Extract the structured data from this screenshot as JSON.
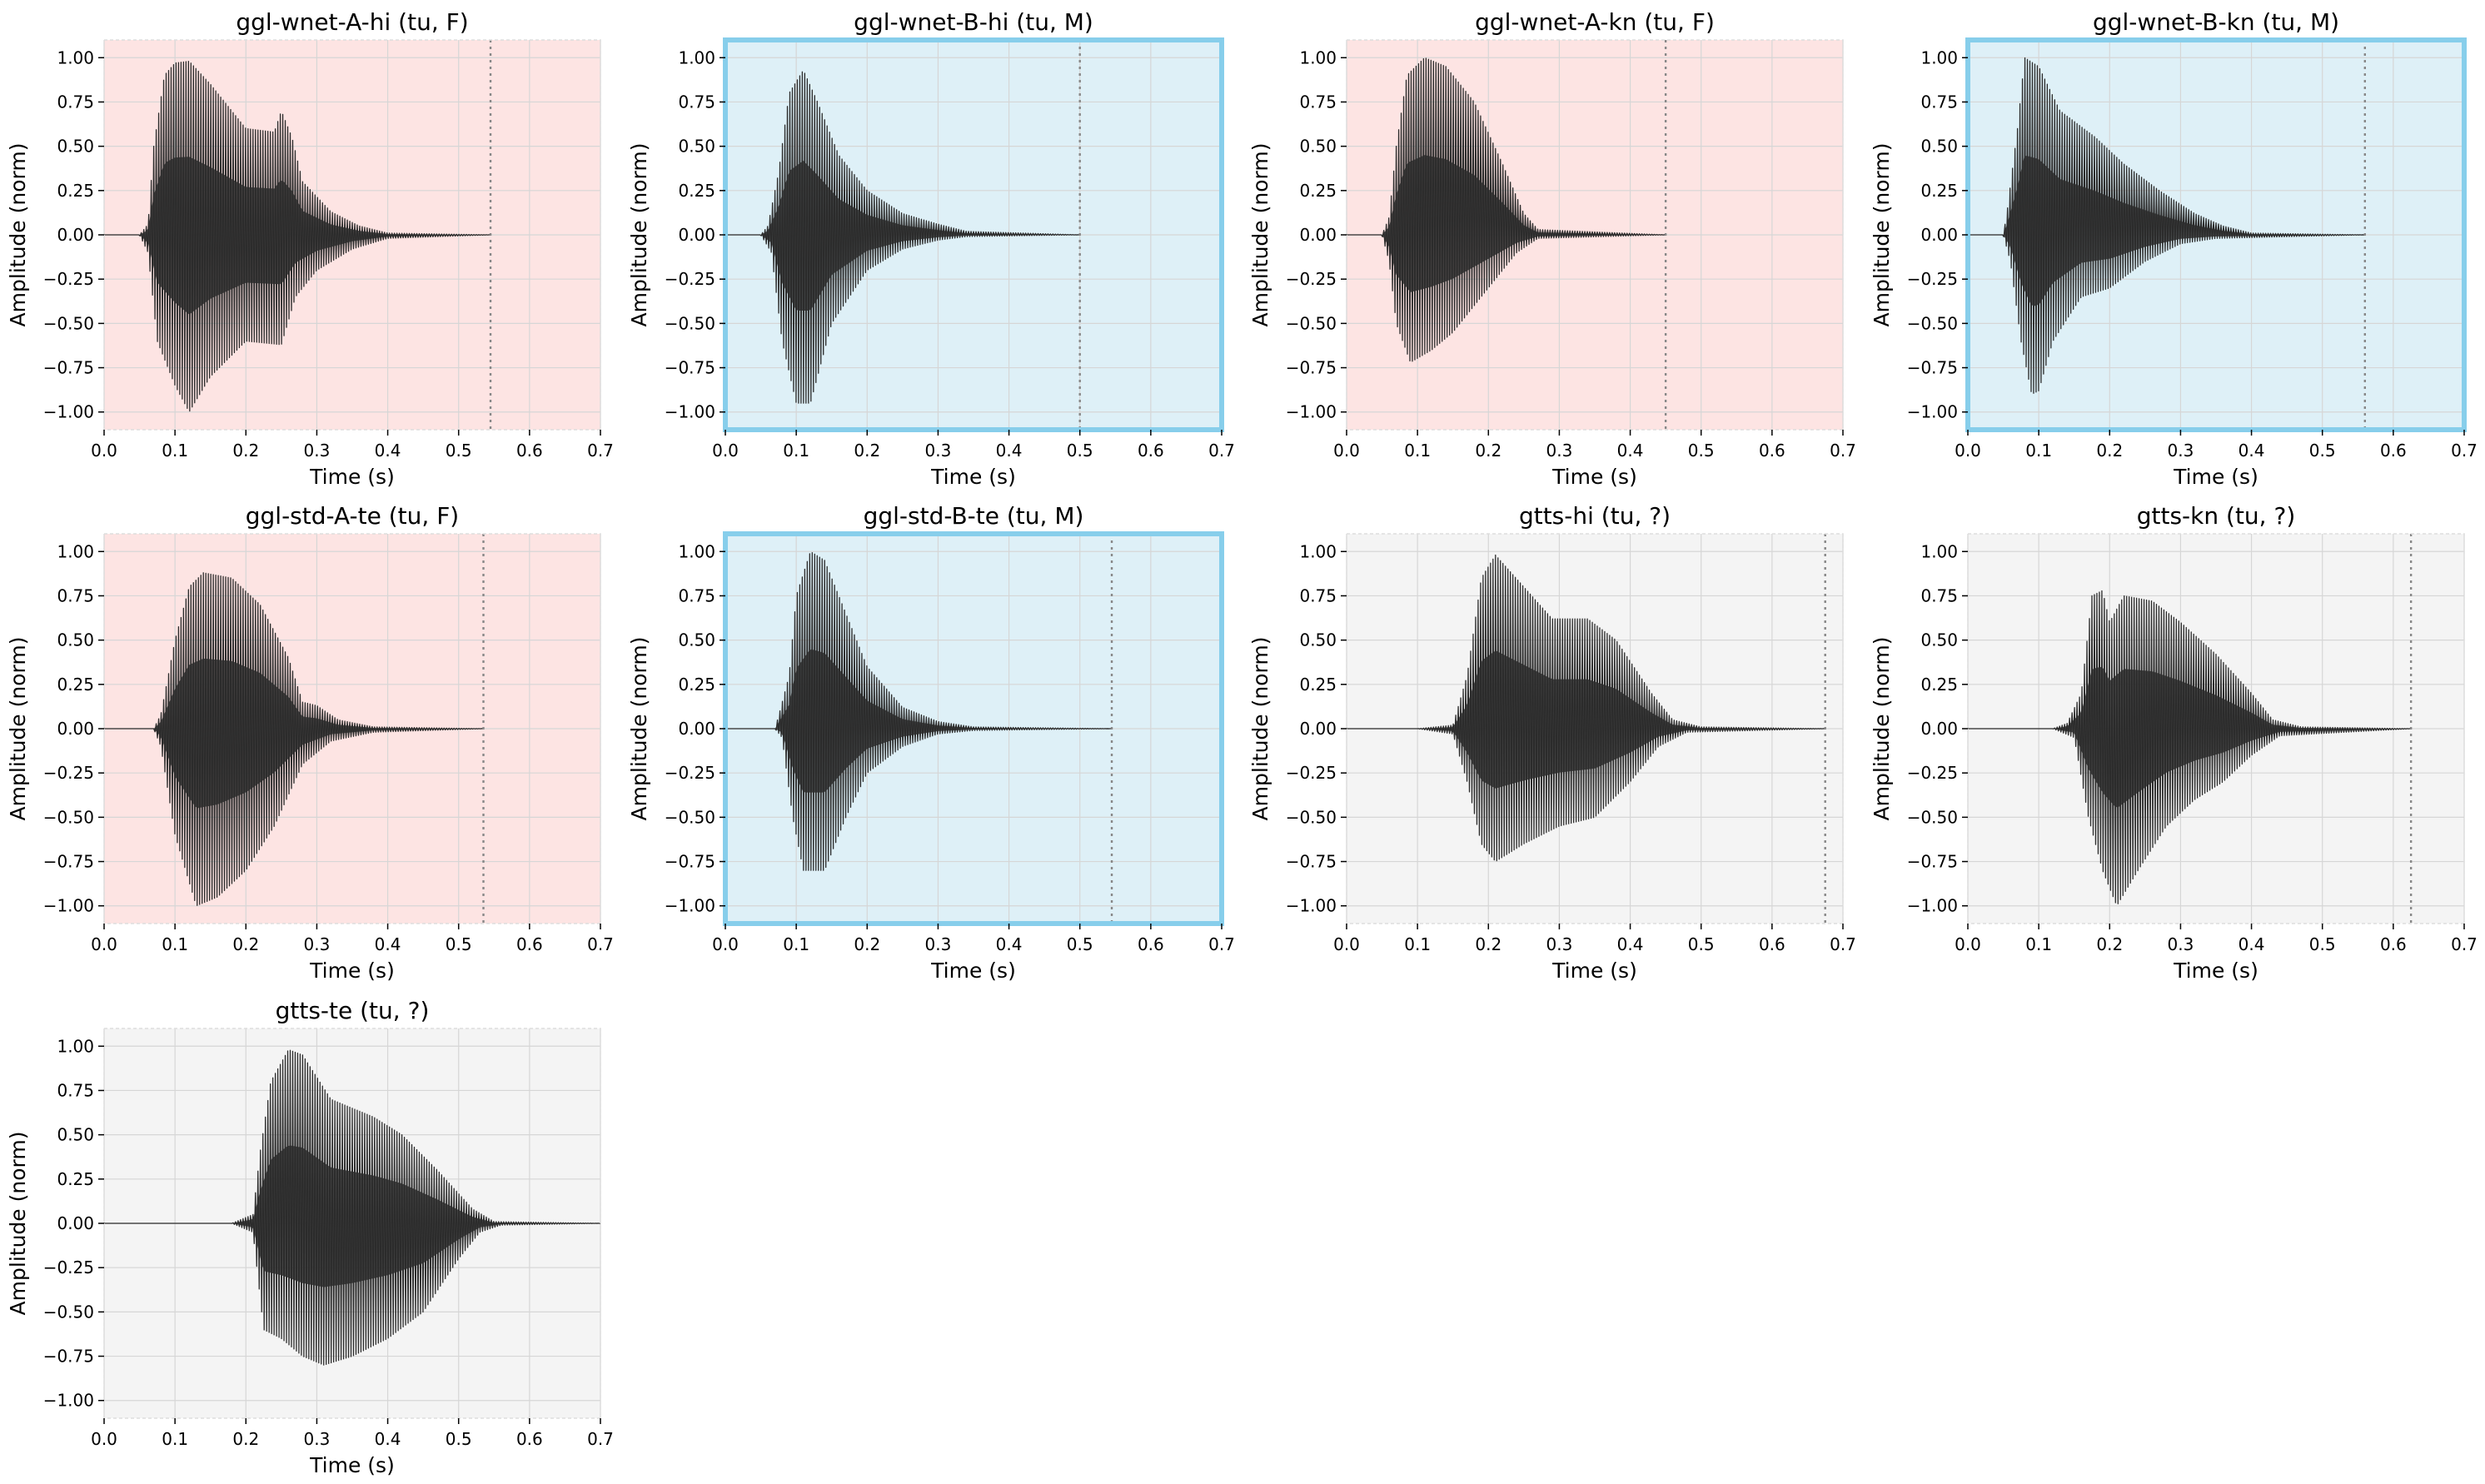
{
  "chart_data": [
    {
      "type": "line",
      "title": "ggl-wnet-A-hi (tu, F)",
      "xlabel": "Time (s)",
      "ylabel": "Amplitude (norm)",
      "xlim": [
        0,
        0.7
      ],
      "ylim": [
        -1.1,
        1.1
      ],
      "xticks": [
        "0.0",
        "0.1",
        "0.2",
        "0.3",
        "0.4",
        "0.5",
        "0.6",
        "0.7"
      ],
      "yticks": [
        "−1.00",
        "−0.75",
        "−0.50",
        "−0.25",
        "0.00",
        "0.25",
        "0.50",
        "0.75",
        "1.00"
      ],
      "grid": true,
      "bg": "#fde4e3",
      "highlight": false,
      "end_marker": 0.545,
      "envelope": [
        [
          0.05,
          0.0
        ],
        [
          0.062,
          0.06
        ],
        [
          0.07,
          0.5
        ],
        [
          0.085,
          0.9
        ],
        [
          0.1,
          0.97
        ],
        [
          0.12,
          0.98
        ],
        [
          0.15,
          0.85
        ],
        [
          0.2,
          0.6
        ],
        [
          0.24,
          0.58
        ],
        [
          0.25,
          0.7
        ],
        [
          0.265,
          0.55
        ],
        [
          0.28,
          0.3
        ],
        [
          0.32,
          0.13
        ],
        [
          0.36,
          0.05
        ],
        [
          0.4,
          0.01
        ],
        [
          0.545,
          0.0
        ]
      ],
      "lower": [
        [
          0.05,
          0.0
        ],
        [
          0.062,
          -0.1
        ],
        [
          0.075,
          -0.6
        ],
        [
          0.1,
          -0.85
        ],
        [
          0.12,
          -1.0
        ],
        [
          0.15,
          -0.8
        ],
        [
          0.2,
          -0.6
        ],
        [
          0.25,
          -0.62
        ],
        [
          0.27,
          -0.35
        ],
        [
          0.3,
          -0.2
        ],
        [
          0.35,
          -0.08
        ],
        [
          0.4,
          -0.02
        ],
        [
          0.545,
          0.0
        ]
      ]
    },
    {
      "type": "line",
      "title": "ggl-wnet-B-hi (tu, M)",
      "xlabel": "Time (s)",
      "ylabel": "Amplitude (norm)",
      "xlim": [
        0,
        0.7
      ],
      "ylim": [
        -1.1,
        1.1
      ],
      "xticks": [
        "0.0",
        "0.1",
        "0.2",
        "0.3",
        "0.4",
        "0.5",
        "0.6",
        "0.7"
      ],
      "yticks": [
        "−1.00",
        "−0.75",
        "−0.50",
        "−0.25",
        "0.00",
        "0.25",
        "0.50",
        "0.75",
        "1.00"
      ],
      "grid": true,
      "bg": "#def0f7",
      "highlight": true,
      "end_marker": 0.5,
      "envelope": [
        [
          0.05,
          0.0
        ],
        [
          0.06,
          0.05
        ],
        [
          0.075,
          0.35
        ],
        [
          0.09,
          0.8
        ],
        [
          0.11,
          0.93
        ],
        [
          0.13,
          0.75
        ],
        [
          0.16,
          0.45
        ],
        [
          0.2,
          0.25
        ],
        [
          0.25,
          0.12
        ],
        [
          0.3,
          0.06
        ],
        [
          0.34,
          0.02
        ],
        [
          0.5,
          0.0
        ]
      ],
      "lower": [
        [
          0.05,
          0.0
        ],
        [
          0.065,
          -0.1
        ],
        [
          0.08,
          -0.6
        ],
        [
          0.1,
          -0.95
        ],
        [
          0.12,
          -0.95
        ],
        [
          0.15,
          -0.5
        ],
        [
          0.2,
          -0.2
        ],
        [
          0.25,
          -0.08
        ],
        [
          0.3,
          -0.03
        ],
        [
          0.34,
          -0.01
        ],
        [
          0.5,
          0.0
        ]
      ]
    },
    {
      "type": "line",
      "title": "ggl-wnet-A-kn (tu, F)",
      "xlabel": "Time (s)",
      "ylabel": "Amplitude (norm)",
      "xlim": [
        0,
        0.7
      ],
      "ylim": [
        -1.1,
        1.1
      ],
      "xticks": [
        "0.0",
        "0.1",
        "0.2",
        "0.3",
        "0.4",
        "0.5",
        "0.6",
        "0.7"
      ],
      "yticks": [
        "−1.00",
        "−0.75",
        "−0.50",
        "−0.25",
        "0.00",
        "0.25",
        "0.50",
        "0.75",
        "1.00"
      ],
      "grid": true,
      "bg": "#fde4e3",
      "highlight": false,
      "end_marker": 0.45,
      "envelope": [
        [
          0.05,
          0.0
        ],
        [
          0.06,
          0.1
        ],
        [
          0.07,
          0.5
        ],
        [
          0.085,
          0.9
        ],
        [
          0.11,
          1.0
        ],
        [
          0.14,
          0.95
        ],
        [
          0.18,
          0.75
        ],
        [
          0.22,
          0.4
        ],
        [
          0.25,
          0.12
        ],
        [
          0.27,
          0.03
        ],
        [
          0.45,
          0.0
        ]
      ],
      "lower": [
        [
          0.05,
          0.0
        ],
        [
          0.06,
          -0.15
        ],
        [
          0.07,
          -0.5
        ],
        [
          0.09,
          -0.72
        ],
        [
          0.12,
          -0.65
        ],
        [
          0.15,
          -0.55
        ],
        [
          0.2,
          -0.3
        ],
        [
          0.24,
          -0.1
        ],
        [
          0.27,
          -0.02
        ],
        [
          0.45,
          0.0
        ]
      ]
    },
    {
      "type": "line",
      "title": "ggl-wnet-B-kn (tu, M)",
      "xlabel": "Time (s)",
      "ylabel": "Amplitude (norm)",
      "xlim": [
        0,
        0.7
      ],
      "ylim": [
        -1.1,
        1.1
      ],
      "xticks": [
        "0.0",
        "0.1",
        "0.2",
        "0.3",
        "0.4",
        "0.5",
        "0.6",
        "0.7"
      ],
      "yticks": [
        "−1.00",
        "−0.75",
        "−0.50",
        "−0.25",
        "0.00",
        "0.25",
        "0.50",
        "0.75",
        "1.00"
      ],
      "grid": true,
      "bg": "#def0f7",
      "highlight": true,
      "end_marker": 0.56,
      "envelope": [
        [
          0.05,
          0.0
        ],
        [
          0.055,
          0.12
        ],
        [
          0.07,
          0.6
        ],
        [
          0.08,
          1.0
        ],
        [
          0.1,
          0.95
        ],
        [
          0.13,
          0.7
        ],
        [
          0.18,
          0.55
        ],
        [
          0.22,
          0.4
        ],
        [
          0.27,
          0.25
        ],
        [
          0.32,
          0.12
        ],
        [
          0.36,
          0.05
        ],
        [
          0.4,
          0.01
        ],
        [
          0.56,
          0.0
        ]
      ],
      "lower": [
        [
          0.05,
          0.0
        ],
        [
          0.06,
          -0.15
        ],
        [
          0.075,
          -0.6
        ],
        [
          0.09,
          -0.9
        ],
        [
          0.1,
          -0.88
        ],
        [
          0.12,
          -0.6
        ],
        [
          0.16,
          -0.35
        ],
        [
          0.2,
          -0.3
        ],
        [
          0.25,
          -0.15
        ],
        [
          0.3,
          -0.05
        ],
        [
          0.35,
          -0.02
        ],
        [
          0.56,
          0.0
        ]
      ]
    },
    {
      "type": "line",
      "title": "ggl-std-A-te (tu, F)",
      "xlabel": "Time (s)",
      "ylabel": "Amplitude (norm)",
      "xlim": [
        0,
        0.7
      ],
      "ylim": [
        -1.1,
        1.1
      ],
      "xticks": [
        "0.0",
        "0.1",
        "0.2",
        "0.3",
        "0.4",
        "0.5",
        "0.6",
        "0.7"
      ],
      "yticks": [
        "−1.00",
        "−0.75",
        "−0.50",
        "−0.25",
        "0.00",
        "0.25",
        "0.50",
        "0.75",
        "1.00"
      ],
      "grid": true,
      "bg": "#fde4e3",
      "highlight": false,
      "end_marker": 0.535,
      "envelope": [
        [
          0.07,
          0.0
        ],
        [
          0.08,
          0.08
        ],
        [
          0.1,
          0.5
        ],
        [
          0.12,
          0.8
        ],
        [
          0.14,
          0.88
        ],
        [
          0.18,
          0.85
        ],
        [
          0.22,
          0.7
        ],
        [
          0.26,
          0.4
        ],
        [
          0.28,
          0.15
        ],
        [
          0.3,
          0.13
        ],
        [
          0.33,
          0.05
        ],
        [
          0.38,
          0.01
        ],
        [
          0.535,
          0.0
        ]
      ],
      "lower": [
        [
          0.07,
          0.0
        ],
        [
          0.08,
          -0.1
        ],
        [
          0.1,
          -0.6
        ],
        [
          0.13,
          -1.0
        ],
        [
          0.16,
          -0.95
        ],
        [
          0.2,
          -0.8
        ],
        [
          0.24,
          -0.55
        ],
        [
          0.28,
          -0.2
        ],
        [
          0.32,
          -0.07
        ],
        [
          0.38,
          -0.02
        ],
        [
          0.535,
          0.0
        ]
      ]
    },
    {
      "type": "line",
      "title": "ggl-std-B-te (tu, M)",
      "xlabel": "Time (s)",
      "ylabel": "Amplitude (norm)",
      "xlim": [
        0,
        0.7
      ],
      "ylim": [
        -1.1,
        1.1
      ],
      "xticks": [
        "0.0",
        "0.1",
        "0.2",
        "0.3",
        "0.4",
        "0.5",
        "0.6",
        "0.7"
      ],
      "yticks": [
        "−1.00",
        "−0.75",
        "−0.50",
        "−0.25",
        "0.00",
        "0.25",
        "0.50",
        "0.75",
        "1.00"
      ],
      "grid": true,
      "bg": "#def0f7",
      "highlight": true,
      "end_marker": 0.545,
      "envelope": [
        [
          0.07,
          0.0
        ],
        [
          0.075,
          0.07
        ],
        [
          0.09,
          0.3
        ],
        [
          0.1,
          0.75
        ],
        [
          0.12,
          1.0
        ],
        [
          0.14,
          0.95
        ],
        [
          0.17,
          0.65
        ],
        [
          0.2,
          0.35
        ],
        [
          0.25,
          0.12
        ],
        [
          0.3,
          0.04
        ],
        [
          0.35,
          0.01
        ],
        [
          0.545,
          0.0
        ]
      ],
      "lower": [
        [
          0.07,
          0.0
        ],
        [
          0.08,
          -0.05
        ],
        [
          0.095,
          -0.5
        ],
        [
          0.11,
          -0.8
        ],
        [
          0.14,
          -0.8
        ],
        [
          0.17,
          -0.5
        ],
        [
          0.2,
          -0.25
        ],
        [
          0.25,
          -0.1
        ],
        [
          0.3,
          -0.03
        ],
        [
          0.35,
          -0.01
        ],
        [
          0.545,
          0.0
        ]
      ]
    },
    {
      "type": "line",
      "title": "gtts-hi (tu, ?)",
      "xlabel": "Time (s)",
      "ylabel": "Amplitude (norm)",
      "xlim": [
        0,
        0.7
      ],
      "ylim": [
        -1.1,
        1.1
      ],
      "xticks": [
        "0.0",
        "0.1",
        "0.2",
        "0.3",
        "0.4",
        "0.5",
        "0.6",
        "0.7"
      ],
      "yticks": [
        "−1.00",
        "−0.75",
        "−0.50",
        "−0.25",
        "0.00",
        "0.25",
        "0.50",
        "0.75",
        "1.00"
      ],
      "grid": true,
      "bg": "#f4f4f4",
      "highlight": false,
      "end_marker": 0.675,
      "envelope": [
        [
          0.1,
          0.0
        ],
        [
          0.15,
          0.02
        ],
        [
          0.17,
          0.3
        ],
        [
          0.19,
          0.85
        ],
        [
          0.21,
          0.98
        ],
        [
          0.25,
          0.8
        ],
        [
          0.29,
          0.62
        ],
        [
          0.34,
          0.62
        ],
        [
          0.38,
          0.5
        ],
        [
          0.43,
          0.2
        ],
        [
          0.46,
          0.05
        ],
        [
          0.5,
          0.01
        ],
        [
          0.675,
          0.0
        ]
      ],
      "lower": [
        [
          0.1,
          0.0
        ],
        [
          0.15,
          -0.03
        ],
        [
          0.17,
          -0.3
        ],
        [
          0.19,
          -0.65
        ],
        [
          0.21,
          -0.75
        ],
        [
          0.25,
          -0.65
        ],
        [
          0.3,
          -0.55
        ],
        [
          0.35,
          -0.5
        ],
        [
          0.4,
          -0.3
        ],
        [
          0.44,
          -0.1
        ],
        [
          0.48,
          -0.02
        ],
        [
          0.675,
          0.0
        ]
      ]
    },
    {
      "type": "line",
      "title": "gtts-kn (tu, ?)",
      "xlabel": "Time (s)",
      "ylabel": "Amplitude (norm)",
      "xlim": [
        0,
        0.7
      ],
      "ylim": [
        -1.1,
        1.1
      ],
      "xticks": [
        "0.0",
        "0.1",
        "0.2",
        "0.3",
        "0.4",
        "0.5",
        "0.6",
        "0.7"
      ],
      "yticks": [
        "−1.00",
        "−0.75",
        "−0.50",
        "−0.25",
        "0.00",
        "0.25",
        "0.50",
        "0.75",
        "1.00"
      ],
      "grid": true,
      "bg": "#f4f4f4",
      "highlight": false,
      "end_marker": 0.625,
      "envelope": [
        [
          0.12,
          0.0
        ],
        [
          0.14,
          0.03
        ],
        [
          0.16,
          0.2
        ],
        [
          0.175,
          0.75
        ],
        [
          0.19,
          0.78
        ],
        [
          0.2,
          0.6
        ],
        [
          0.22,
          0.75
        ],
        [
          0.26,
          0.72
        ],
        [
          0.3,
          0.6
        ],
        [
          0.35,
          0.42
        ],
        [
          0.4,
          0.2
        ],
        [
          0.43,
          0.05
        ],
        [
          0.47,
          0.01
        ],
        [
          0.625,
          0.0
        ]
      ],
      "lower": [
        [
          0.12,
          0.0
        ],
        [
          0.15,
          -0.05
        ],
        [
          0.17,
          -0.5
        ],
        [
          0.19,
          -0.8
        ],
        [
          0.21,
          -1.0
        ],
        [
          0.24,
          -0.8
        ],
        [
          0.28,
          -0.55
        ],
        [
          0.32,
          -0.4
        ],
        [
          0.36,
          -0.3
        ],
        [
          0.4,
          -0.15
        ],
        [
          0.44,
          -0.04
        ],
        [
          0.625,
          0.0
        ]
      ]
    },
    {
      "type": "line",
      "title": "gtts-te (tu, ?)",
      "xlabel": "Time (s)",
      "ylabel": "Amplitude (norm)",
      "xlim": [
        0,
        0.7
      ],
      "ylim": [
        -1.1,
        1.1
      ],
      "xticks": [
        "0.0",
        "0.1",
        "0.2",
        "0.3",
        "0.4",
        "0.5",
        "0.6",
        "0.7"
      ],
      "yticks": [
        "−1.00",
        "−0.75",
        "−0.50",
        "−0.25",
        "0.00",
        "0.25",
        "0.50",
        "0.75",
        "1.00"
      ],
      "grid": true,
      "bg": "#f4f4f4",
      "highlight": false,
      "end_marker": null,
      "envelope": [
        [
          0.18,
          0.0
        ],
        [
          0.21,
          0.05
        ],
        [
          0.22,
          0.4
        ],
        [
          0.235,
          0.8
        ],
        [
          0.26,
          0.98
        ],
        [
          0.28,
          0.95
        ],
        [
          0.32,
          0.7
        ],
        [
          0.38,
          0.6
        ],
        [
          0.42,
          0.5
        ],
        [
          0.47,
          0.3
        ],
        [
          0.52,
          0.08
        ],
        [
          0.55,
          0.01
        ],
        [
          0.7,
          0.0
        ]
      ],
      "lower": [
        [
          0.18,
          0.0
        ],
        [
          0.21,
          -0.05
        ],
        [
          0.225,
          -0.6
        ],
        [
          0.25,
          -0.65
        ],
        [
          0.28,
          -0.75
        ],
        [
          0.31,
          -0.8
        ],
        [
          0.35,
          -0.75
        ],
        [
          0.4,
          -0.65
        ],
        [
          0.45,
          -0.5
        ],
        [
          0.5,
          -0.2
        ],
        [
          0.53,
          -0.05
        ],
        [
          0.56,
          -0.01
        ],
        [
          0.7,
          0.0
        ]
      ]
    }
  ]
}
